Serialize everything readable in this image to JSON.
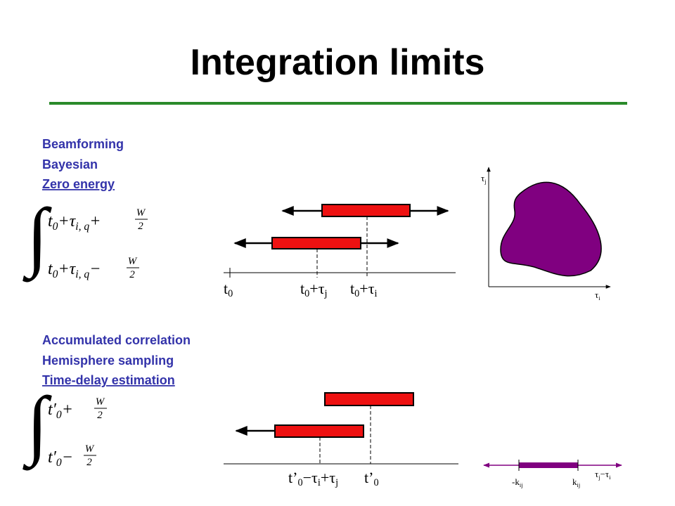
{
  "title": "Integration limits",
  "top": {
    "methods": [
      "Beamforming",
      "Bayesian",
      "Zero energy"
    ],
    "integral": {
      "sign": "∫",
      "upper": [
        "t",
        "0",
        "+τ",
        "i, q",
        "+"
      ],
      "upper_frac": [
        "W",
        "2"
      ],
      "lower": [
        "t",
        "0",
        "+τ",
        "i, q",
        "−"
      ],
      "lower_frac": [
        "W",
        "2"
      ]
    },
    "timeline": [
      [
        "t",
        "0"
      ],
      [
        "t",
        "0",
        "+τ",
        "j"
      ],
      [
        "t",
        "0",
        "+τ",
        "i"
      ]
    ],
    "plot": {
      "y_label": [
        "τ",
        "j"
      ],
      "x_label": [
        "τ",
        "i"
      ]
    }
  },
  "bottom": {
    "methods": [
      "Accumulated correlation",
      "Hemisphere sampling",
      "Time-delay estimation"
    ],
    "integral": {
      "sign": "∫",
      "upper": [
        "t′",
        "0",
        "+"
      ],
      "upper_frac": [
        "W",
        "2"
      ],
      "lower": [
        "t′",
        "0",
        "−"
      ],
      "lower_frac": [
        "W",
        "2"
      ]
    },
    "timeline": [
      [
        "t’",
        "0",
        "−τ",
        "i",
        "+τ",
        "j"
      ],
      [
        "t’",
        "0"
      ]
    ],
    "range": [
      [
        "-k",
        "ij"
      ],
      [
        "k",
        "ij"
      ],
      [
        "τ",
        "j",
        "−τ",
        "i"
      ]
    ]
  }
}
